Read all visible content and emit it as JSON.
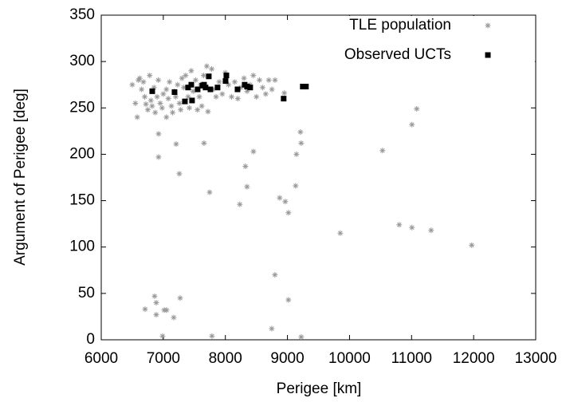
{
  "chart_data": {
    "type": "scatter",
    "x_label": "Perigee [km]",
    "y_label": "Argument of Perigee [deg]",
    "xlim": [
      6000,
      13000
    ],
    "xticks": [
      6000,
      7000,
      8000,
      9000,
      10000,
      11000,
      12000,
      13000
    ],
    "ylim": [
      0,
      350
    ],
    "yticks": [
      0,
      50,
      100,
      150,
      200,
      250,
      300,
      350
    ],
    "grid": false,
    "legend": "upper right",
    "series": [
      {
        "name": "TLE population",
        "color": "#999999",
        "marker": "asterisk",
        "x": [
          6924,
          6924,
          7207,
          7656,
          7258,
          7746,
          8323,
          8452,
          8233,
          8349,
          8875,
          8965,
          9016,
          9132,
          9145,
          9209,
          9222,
          8798,
          9016,
          8747,
          9222,
          7784,
          6988,
          9851,
          10531,
          10801,
          11006,
          11006,
          11083,
          11315,
          11969,
          6706,
          6860,
          6886,
          6886,
          7014,
          7053,
          7168,
          7271,
          6500,
          6550,
          6580,
          6600,
          6620,
          6650,
          6700,
          6720,
          6750,
          6780,
          6800,
          6820,
          6850,
          6870,
          6900,
          6920,
          6950,
          6980,
          7000,
          7050,
          7080,
          7100,
          7130,
          7150,
          7200,
          7230,
          7260,
          7280,
          7300,
          7330,
          7360,
          7400,
          7420,
          7450,
          7480,
          7520,
          7550,
          7580,
          7620,
          7650,
          7700,
          7720,
          7780,
          7800,
          7850,
          7900,
          7950,
          8000,
          8050,
          8100,
          8150,
          8200,
          8250,
          8300,
          8350,
          8400,
          8450,
          8500,
          8550,
          8600,
          8650,
          8700,
          8750,
          8800,
          8950,
          7180,
          6680,
          7600,
          7050
        ],
        "values": [
          222,
          197,
          211,
          212,
          179,
          159,
          187,
          203,
          146,
          165,
          153,
          149,
          137,
          166,
          200,
          224,
          212,
          70,
          43,
          12,
          3,
          4,
          4,
          115,
          204,
          124,
          232,
          121,
          249,
          118,
          102,
          33,
          47,
          40,
          27,
          32,
          32,
          24,
          45,
          275,
          255,
          240,
          280,
          282,
          270,
          262,
          254,
          248,
          285,
          258,
          252,
          272,
          245,
          262,
          280,
          255,
          250,
          265,
          270,
          260,
          278,
          252,
          245,
          262,
          275,
          255,
          248,
          282,
          272,
          285,
          262,
          250,
          290,
          268,
          280,
          248,
          262,
          252,
          285,
          295,
          246,
          292,
          270,
          262,
          278,
          265,
          288,
          275,
          262,
          278,
          260,
          272,
          282,
          268,
          275,
          285,
          262,
          280,
          272,
          265,
          280,
          270,
          280,
          266,
          268,
          278,
          275,
          240
        ]
      },
      {
        "name": "Observed UCTs",
        "color": "#000000",
        "marker": "square",
        "x": [
          6822,
          7181,
          7399,
          7348,
          7451,
          7463,
          7553,
          7630,
          7656,
          7681,
          7733,
          7759,
          7874,
          8003,
          8016,
          8196,
          8311,
          8349,
          8400,
          8939,
          9247,
          9298
        ],
        "values": [
          268,
          267,
          272,
          257,
          275,
          258,
          270,
          274,
          275,
          272,
          284,
          270,
          272,
          279,
          285,
          270,
          275,
          273,
          272,
          260,
          273,
          273
        ]
      }
    ]
  }
}
